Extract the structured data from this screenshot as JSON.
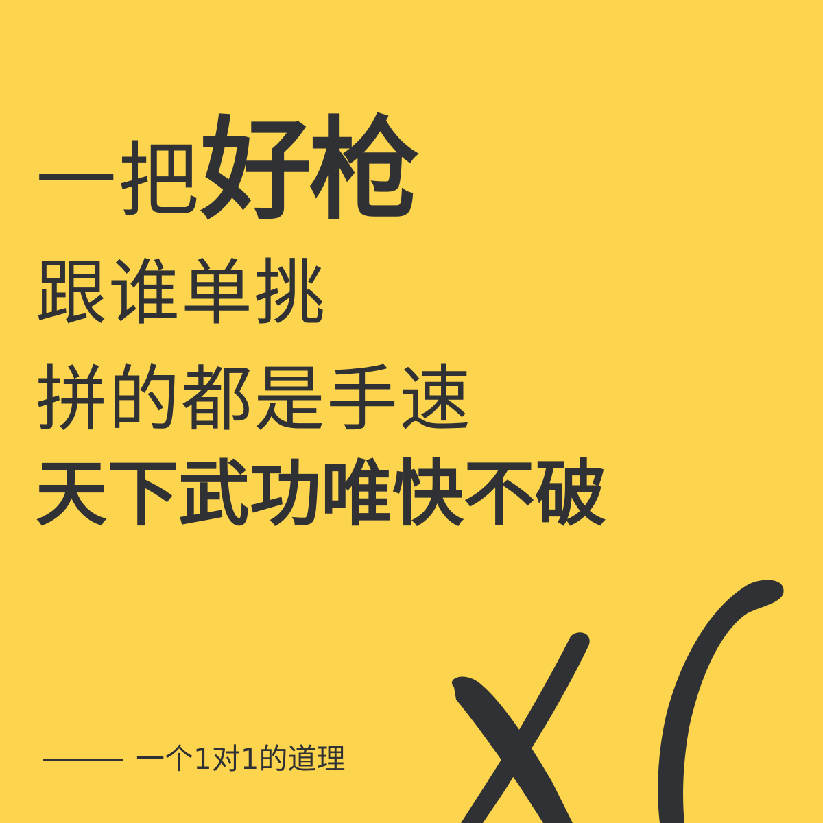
{
  "headline": {
    "line1_light": "一把",
    "line1_heavy": "好枪",
    "line2": "跟谁单挑",
    "line3": "拼的都是手速",
    "line4": "天下武功唯快不破"
  },
  "footer": {
    "caption": "一个1对1的道理"
  },
  "graphic": {
    "mark": "x1-brush-mark"
  },
  "colors": {
    "background": "#FCD44D",
    "ink": "#2F3135"
  }
}
